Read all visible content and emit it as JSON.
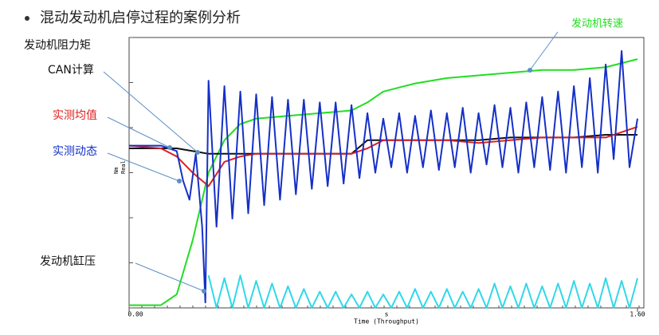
{
  "chart_data": {
    "type": "line",
    "title": "混动发动机启停过程的案例分析",
    "annotation": "发动机阻力矩",
    "xlabel": "Time (Throughput)",
    "xunit": "s",
    "ylabel": "Nm",
    "ylabel_sub": "Real",
    "xlim": [
      0,
      1.6
    ],
    "xticks": [
      {
        "value": 0,
        "label": "0.00"
      },
      {
        "value": 1.6,
        "label": "1.60"
      }
    ],
    "ylim": [
      0,
      100
    ],
    "series": [
      {
        "name": "发动机转速",
        "color": "#22dd22",
        "x": [
          0,
          0.1,
          0.15,
          0.2,
          0.25,
          0.3,
          0.35,
          0.4,
          0.5,
          0.6,
          0.7,
          0.75,
          0.8,
          0.9,
          1.0,
          1.1,
          1.2,
          1.3,
          1.4,
          1.5,
          1.6
        ],
        "values": [
          1,
          1,
          5,
          25,
          50,
          62,
          68,
          70,
          71,
          72,
          73,
          76,
          80,
          83,
          85,
          86,
          87,
          88,
          88,
          89,
          92
        ]
      },
      {
        "name": "CAN计算",
        "color": "#111111",
        "x": [
          0,
          0.1,
          0.15,
          0.2,
          0.25,
          0.3,
          0.35,
          0.4,
          0.5,
          0.6,
          0.7,
          0.75,
          0.8,
          0.9,
          1.0,
          1.1,
          1.2,
          1.3,
          1.4,
          1.5,
          1.6
        ],
        "values": [
          59,
          59,
          59,
          58,
          57,
          57,
          57,
          57,
          57,
          57,
          57,
          62,
          62,
          62,
          62,
          62,
          63,
          63,
          63,
          64,
          64
        ]
      },
      {
        "name": "实测均值",
        "color": "#e02020",
        "x": [
          0,
          0.1,
          0.15,
          0.2,
          0.25,
          0.3,
          0.35,
          0.4,
          0.5,
          0.6,
          0.7,
          0.75,
          0.8,
          0.9,
          1.0,
          1.1,
          1.2,
          1.3,
          1.4,
          1.5,
          1.6
        ],
        "values": [
          60,
          59,
          56,
          50,
          45,
          54,
          56,
          57,
          57,
          57,
          57,
          59,
          62,
          62,
          62,
          61,
          62,
          63,
          63,
          63,
          67
        ]
      },
      {
        "name": "实测动态",
        "color": "#1530c8",
        "x": [
          0,
          0.1,
          0.15,
          0.17,
          0.19,
          0.21,
          0.23,
          0.24,
          0.25,
          0.275,
          0.3,
          0.325,
          0.35,
          0.375,
          0.4,
          0.425,
          0.45,
          0.475,
          0.5,
          0.525,
          0.55,
          0.575,
          0.6,
          0.625,
          0.65,
          0.675,
          0.7,
          0.725,
          0.75,
          0.775,
          0.8,
          0.825,
          0.85,
          0.875,
          0.9,
          0.925,
          0.95,
          0.975,
          1.0,
          1.025,
          1.05,
          1.075,
          1.1,
          1.125,
          1.15,
          1.175,
          1.2,
          1.225,
          1.25,
          1.275,
          1.3,
          1.325,
          1.35,
          1.375,
          1.4,
          1.425,
          1.45,
          1.475,
          1.5,
          1.525,
          1.55,
          1.575,
          1.6
        ],
        "values": [
          60,
          60,
          58,
          47,
          40,
          57,
          30,
          2,
          84,
          30,
          82,
          33,
          80,
          35,
          79,
          38,
          78,
          40,
          77,
          42,
          77,
          44,
          76,
          45,
          76,
          46,
          75,
          48,
          72,
          50,
          70,
          52,
          72,
          50,
          71,
          52,
          73,
          51,
          72,
          52,
          74,
          50,
          72,
          53,
          75,
          52,
          74,
          50,
          76,
          52,
          78,
          51,
          80,
          50,
          82,
          52,
          85,
          50,
          90,
          55,
          95,
          52,
          70
        ]
      },
      {
        "name": "发动机缸压",
        "color": "#30d8e8",
        "x": [
          0.25,
          0.275,
          0.3,
          0.325,
          0.35,
          0.375,
          0.4,
          0.425,
          0.45,
          0.475,
          0.5,
          0.525,
          0.55,
          0.575,
          0.6,
          0.625,
          0.65,
          0.675,
          0.7,
          0.725,
          0.75,
          0.775,
          0.8,
          0.825,
          0.85,
          0.875,
          0.9,
          0.925,
          0.95,
          0.975,
          1.0,
          1.025,
          1.05,
          1.075,
          1.1,
          1.125,
          1.15,
          1.175,
          1.2,
          1.225,
          1.25,
          1.275,
          1.3,
          1.325,
          1.35,
          1.375,
          1.4,
          1.425,
          1.45,
          1.475,
          1.5,
          1.525,
          1.55,
          1.575,
          1.6
        ],
        "values": [
          12,
          0,
          11,
          0,
          12,
          0,
          10,
          0,
          9,
          0,
          8,
          0,
          7,
          0,
          6,
          0,
          6,
          0,
          5,
          0,
          6,
          0,
          5,
          0,
          6,
          0,
          7,
          0,
          6,
          0,
          7,
          0,
          6,
          0,
          7,
          0,
          9,
          0,
          8,
          0,
          9,
          0,
          8,
          0,
          9,
          0,
          10,
          0,
          9,
          0,
          11,
          0,
          10,
          0,
          11
        ]
      }
    ]
  }
}
